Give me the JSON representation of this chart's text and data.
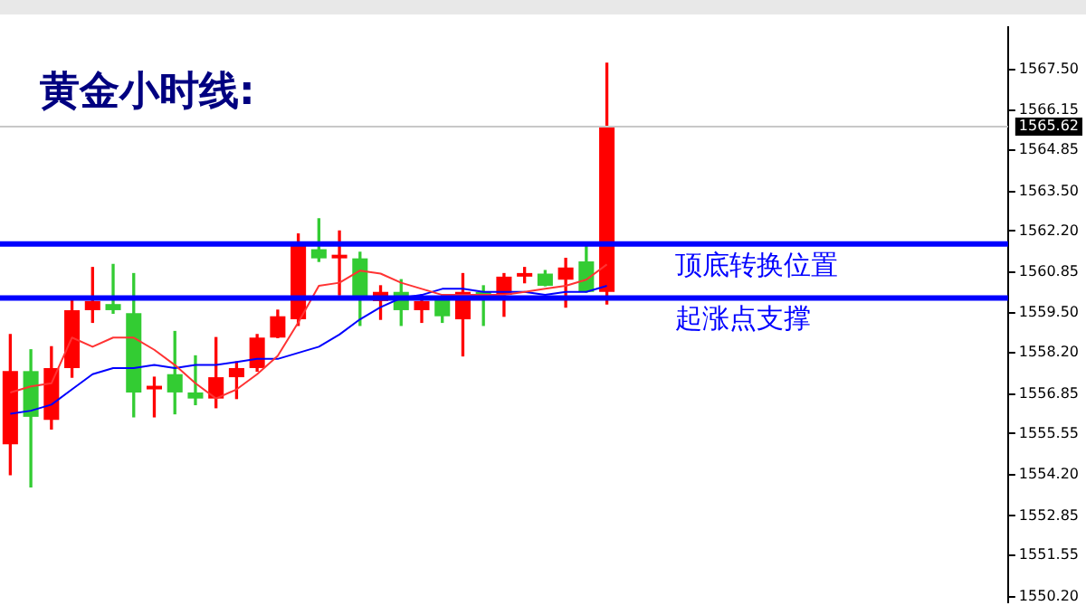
{
  "chart_data": {
    "type": "candlestick",
    "title": "黄金小时线:",
    "categories": [
      null,
      null,
      null,
      null,
      null,
      null,
      null,
      null,
      null,
      null,
      null,
      null,
      null,
      null,
      null,
      null,
      null,
      null,
      null,
      null,
      null,
      null,
      null,
      null,
      null,
      null,
      null,
      null,
      null,
      null,
      null,
      null,
      null,
      null,
      null,
      null,
      null,
      null,
      null,
      null,
      null,
      null,
      null,
      null,
      null,
      null,
      null,
      null,
      null
    ],
    "ohlc": [
      [
        1555.2,
        1558.8,
        1554.2,
        1557.6
      ],
      [
        1557.6,
        1558.3,
        1553.8,
        1556.1
      ],
      [
        1556.0,
        1558.4,
        1555.7,
        1557.7
      ],
      [
        1557.7,
        1560.0,
        1557.4,
        1559.6
      ],
      [
        1559.6,
        1561.0,
        1559.2,
        1559.9
      ],
      [
        1559.8,
        1561.1,
        1559.5,
        1559.6
      ],
      [
        1559.5,
        1560.8,
        1556.1,
        1556.9
      ],
      [
        1557.0,
        1557.4,
        1556.1,
        1557.1
      ],
      [
        1557.5,
        1558.9,
        1556.2,
        1556.9
      ],
      [
        1556.9,
        1558.1,
        1556.5,
        1556.7
      ],
      [
        1556.7,
        1558.7,
        1556.4,
        1557.4
      ],
      [
        1557.4,
        1557.9,
        1556.7,
        1557.7
      ],
      [
        1557.7,
        1558.8,
        1557.6,
        1558.7
      ],
      [
        1558.7,
        1559.6,
        1558.7,
        1559.4
      ],
      [
        1559.3,
        1562.1,
        1559.1,
        1561.8
      ],
      [
        1561.6,
        1562.6,
        1561.2,
        1561.3
      ],
      [
        1561.3,
        1562.2,
        1560.1,
        1561.4
      ],
      [
        1561.3,
        1561.5,
        1559.1,
        1560.0
      ],
      [
        1559.9,
        1560.4,
        1559.3,
        1560.2
      ],
      [
        1560.2,
        1560.6,
        1559.1,
        1559.6
      ],
      [
        1559.6,
        1560.1,
        1559.2,
        1559.9
      ],
      [
        1560.0,
        1560.1,
        1559.2,
        1559.4
      ],
      [
        1559.3,
        1560.8,
        1558.1,
        1560.2
      ],
      [
        1560.2,
        1560.4,
        1559.1,
        1560.0
      ],
      [
        1560.1,
        1560.8,
        1559.4,
        1560.7
      ],
      [
        1560.7,
        1561.0,
        1560.5,
        1560.8
      ],
      [
        1560.8,
        1560.9,
        1560.4,
        1560.4
      ],
      [
        1560.6,
        1561.3,
        1559.7,
        1561.0
      ],
      [
        1561.2,
        1561.8,
        1560.2,
        1560.2
      ],
      [
        1560.2,
        1567.7,
        1559.8,
        1565.6
      ],
      null,
      null,
      null,
      null,
      null,
      null,
      null,
      null,
      null,
      null,
      null,
      null,
      null,
      null,
      null,
      null,
      null,
      null,
      null
    ],
    "colors": [
      "#ff0000",
      "#33cc33",
      "#ff0000",
      "#ff0000",
      "#ff0000",
      "#33cc33",
      "#33cc33",
      "#ff0000",
      "#33cc33",
      "#33cc33",
      "#ff0000",
      "#ff0000",
      "#ff0000",
      "#ff0000",
      "#ff0000",
      "#33cc33",
      "#ff0000",
      "#33cc33",
      "#ff0000",
      "#33cc33",
      "#ff0000",
      "#33cc33",
      "#ff0000",
      "#33cc33",
      "#ff0000",
      "#ff0000",
      "#33cc33",
      "#ff0000",
      "#33cc33",
      "#ff0000",
      null,
      null,
      null,
      null,
      null,
      null,
      null,
      null,
      null,
      null,
      null,
      null,
      null,
      null,
      null,
      null,
      null,
      null,
      null
    ],
    "series": [
      {
        "type": "line",
        "color": "#ff3333",
        "values": [
          1556.9,
          1557.1,
          1557.2,
          1558.7,
          1558.4,
          1558.7,
          1558.7,
          1558.3,
          1557.8,
          1557.2,
          1556.7,
          1557.0,
          1557.5,
          1558.1,
          1559.2,
          1560.4,
          1560.5,
          1560.9,
          1560.8,
          1560.5,
          1560.3,
          1560.1,
          1560.1,
          1560.1,
          1560.1,
          1560.2,
          1560.3,
          1560.4,
          1560.6,
          1561.1,
          null,
          null,
          null,
          null,
          null,
          null,
          null,
          null,
          null,
          null,
          null,
          null,
          null,
          null,
          null,
          null,
          null,
          null,
          null
        ]
      },
      {
        "type": "line",
        "color": "#0000ff",
        "values": [
          1556.2,
          1556.3,
          1556.5,
          1557.0,
          1557.5,
          1557.7,
          1557.7,
          1557.8,
          1557.7,
          1557.8,
          1557.8,
          1557.9,
          1558.0,
          1558.0,
          1558.2,
          1558.4,
          1558.8,
          1559.3,
          1559.7,
          1560.0,
          1560.1,
          1560.3,
          1560.3,
          1560.2,
          1560.2,
          1560.2,
          1560.1,
          1560.2,
          1560.2,
          1560.4,
          null,
          null,
          null,
          null,
          null,
          null,
          null,
          null,
          null,
          null,
          null,
          null,
          null,
          null,
          null,
          null,
          null,
          null,
          null
        ]
      }
    ],
    "ylim": [
      1550.0,
      1568.9
    ],
    "yticks": [
      {
        "value": 1550.2,
        "label": "1550.20"
      },
      {
        "value": 1551.55,
        "label": "1551.55"
      },
      {
        "value": 1552.85,
        "label": "1552.85"
      },
      {
        "value": 1554.2,
        "label": "1554.20"
      },
      {
        "value": 1555.55,
        "label": "1555.55"
      },
      {
        "value": 1556.85,
        "label": "1556.85"
      },
      {
        "value": 1558.2,
        "label": "1558.20"
      },
      {
        "value": 1559.5,
        "label": "1559.50"
      },
      {
        "value": 1560.85,
        "label": "1560.85"
      },
      {
        "value": 1562.2,
        "label": "1562.20"
      },
      {
        "value": 1563.5,
        "label": "1563.50"
      },
      {
        "value": 1564.85,
        "label": "1564.85"
      },
      {
        "value": 1566.15,
        "label": "1566.15"
      },
      {
        "value": 1567.5,
        "label": "1567.50"
      }
    ],
    "ref_lines": [
      {
        "axis": "y",
        "value": 1565.62,
        "color": "#c8c8c8"
      },
      {
        "axis": "y",
        "value": 1561.77,
        "label": "顶底转换位置",
        "color": "#0000ff"
      },
      {
        "axis": "y",
        "value": 1560.0,
        "label": "起涨点支撑",
        "color": "#0000ff"
      }
    ],
    "annotations": [
      "1565.62"
    ],
    "grid": false,
    "legend": false
  }
}
